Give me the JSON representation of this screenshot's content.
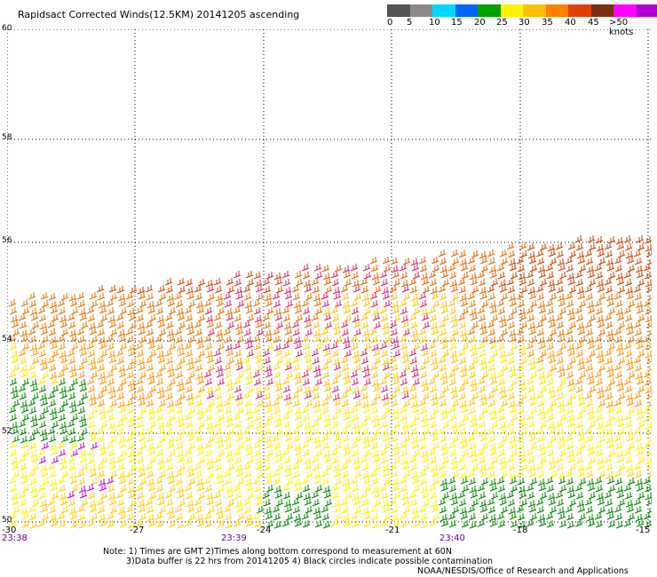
{
  "title": "Rapidsact Corrected Winds(12.5KM) 20141205 ascending",
  "legend": {
    "colors": [
      "#555555",
      "#8a8a8a",
      "#00d8ff",
      "#0066ff",
      "#00a000",
      "#fff200",
      "#ffc000",
      "#ff8000",
      "#e04000",
      "#7a3010",
      "#ff00ff",
      "#b000d0",
      "#6a00a0"
    ],
    "labels": [
      "0",
      "5",
      "10",
      "15",
      "20",
      "25",
      "30",
      "35",
      "40",
      "45",
      ">50 knots"
    ]
  },
  "map": {
    "lat_labels": [
      "60",
      "58",
      "56",
      "54",
      "52",
      "50"
    ],
    "lon_labels": [
      "-30",
      "-27",
      "-24",
      "-21",
      "-18",
      "-15"
    ],
    "time_labels": [
      "23:38",
      "23:39",
      "23:40"
    ],
    "grid": true
  },
  "notes": [
    "Note: 1) Times are GMT 2)Times along bottom correspond to measurement at 60N",
    "3)Data buffer is 22 hrs from 20141205 4) Black circles indicate possible contamination",
    "NOAA/NESDIS/Office of Research and Applications"
  ]
}
